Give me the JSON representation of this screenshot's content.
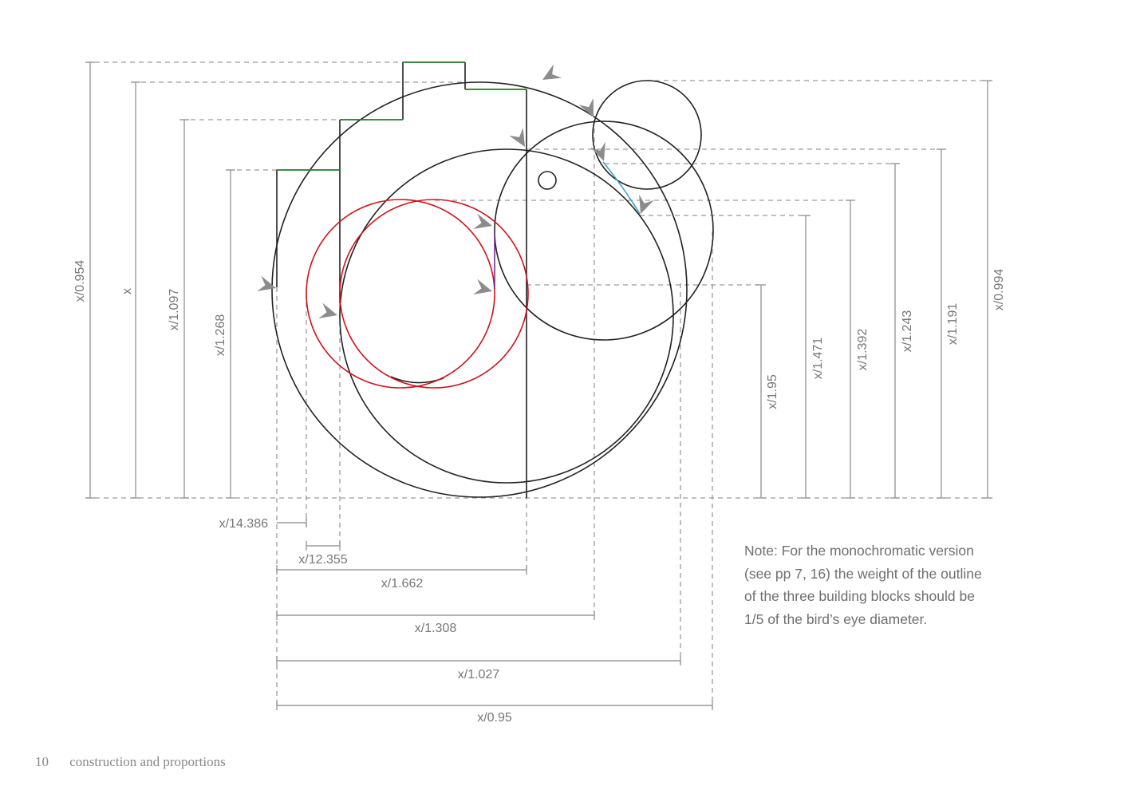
{
  "diagram": {
    "vertical_dimensions": [
      "x/0.954",
      "x",
      "x/1.097",
      "x/1.268",
      "x/1.95",
      "x/1.471",
      "x/1.392",
      "x/1.243",
      "x/1.191",
      "x/0.994"
    ],
    "horizontal_dimensions": [
      "x/14.386",
      "x/12.355",
      "x/1.662",
      "x/1.308",
      "x/1.027",
      "x/0.95"
    ],
    "colors": {
      "construction": "#222222",
      "building_block": "#d0121b",
      "step": "#1f7a2e",
      "accent": "#3aa3c8",
      "dimension": "#9a9a9a",
      "arrow": "#8c8c8c"
    }
  },
  "note": {
    "lines": [
      "Note: For the monochromatic version",
      "(see pp 7, 16) the weight of the outline",
      "of the three building blocks should be",
      "1/5 of the bird’s eye diameter."
    ]
  },
  "footer": {
    "page_number": "10",
    "section": "construction and proportions"
  }
}
